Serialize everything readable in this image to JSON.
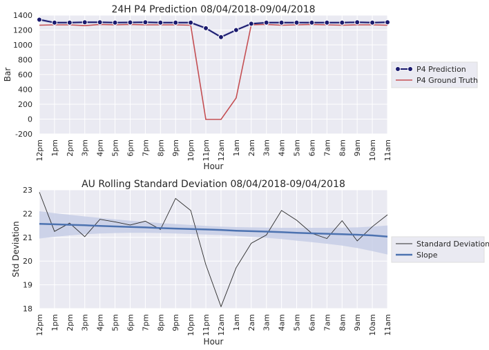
{
  "colors": {
    "plot_bg": "#eaeaf2",
    "grid": "#ffffff",
    "prediction": "#1a1a6e",
    "prediction_band": "#b9bfe0",
    "ground_truth": "#c44e52",
    "std_line": "#2b2b2b",
    "slope": "#4c72b0",
    "slope_band": "#c7cee6"
  },
  "chart_data": [
    {
      "type": "line",
      "title": "24H P4 Prediction 08/04/2018-09/04/2018",
      "xlabel": "Hour",
      "ylabel": "Bar",
      "categories": [
        "12pm",
        "1pm",
        "2pm",
        "3pm",
        "4pm",
        "5pm",
        "6pm",
        "7pm",
        "8pm",
        "9pm",
        "10pm",
        "11pm",
        "12am",
        "1am",
        "2am",
        "3am",
        "4am",
        "5am",
        "6am",
        "7am",
        "8am",
        "9am",
        "10am",
        "11am"
      ],
      "ylim": [
        -200,
        1400
      ],
      "yticks": [
        -200,
        0,
        200,
        400,
        600,
        800,
        1000,
        1200,
        1400
      ],
      "grid": true,
      "legend_position": "right",
      "series": [
        {
          "name": "P4 Prediction",
          "marker": "circle",
          "values": [
            1340,
            1300,
            1300,
            1305,
            1305,
            1300,
            1302,
            1305,
            1300,
            1300,
            1300,
            1225,
            1105,
            1200,
            1285,
            1300,
            1300,
            1300,
            1300,
            1300,
            1300,
            1305,
            1300,
            1305
          ]
        },
        {
          "name": "P4 Ground Truth",
          "marker": "none",
          "values": [
            1265,
            1270,
            1270,
            1260,
            1275,
            1270,
            1275,
            1270,
            1270,
            1270,
            1265,
            -5,
            -5,
            285,
            1270,
            1275,
            1265,
            1270,
            1275,
            1270,
            1265,
            1270,
            1270,
            1265
          ]
        }
      ]
    },
    {
      "type": "line",
      "title": "AU Rolling Standard Deviation 08/04/2018-09/04/2018",
      "xlabel": "Hour",
      "ylabel": "Std Deviation",
      "categories": [
        "12pm",
        "1pm",
        "2pm",
        "3pm",
        "4pm",
        "5pm",
        "6pm",
        "7pm",
        "8pm",
        "9pm",
        "10pm",
        "11pm",
        "12am",
        "1am",
        "2am",
        "3am",
        "4am",
        "5am",
        "6am",
        "7am",
        "8am",
        "9am",
        "10am",
        "11am"
      ],
      "ylim": [
        18,
        23
      ],
      "yticks": [
        18,
        19,
        20,
        21,
        22,
        23
      ],
      "grid": true,
      "legend_position": "right",
      "series": [
        {
          "name": "Standard Deviation",
          "values": [
            22.9,
            21.25,
            21.6,
            21.03,
            21.76,
            21.65,
            21.52,
            21.68,
            21.33,
            22.64,
            22.13,
            19.85,
            18.08,
            19.72,
            20.75,
            21.1,
            22.13,
            21.72,
            21.17,
            20.95,
            21.7,
            20.85,
            21.45,
            21.95
          ]
        },
        {
          "name": "Slope",
          "values": [
            21.57,
            21.55,
            21.53,
            21.51,
            21.48,
            21.46,
            21.44,
            21.42,
            21.39,
            21.37,
            21.35,
            21.33,
            21.31,
            21.28,
            21.26,
            21.24,
            21.22,
            21.19,
            21.17,
            21.15,
            21.13,
            21.11,
            21.08,
            21.03
          ],
          "band_upper": [
            22.1,
            22.02,
            21.95,
            21.88,
            21.82,
            21.76,
            21.7,
            21.65,
            21.6,
            21.56,
            21.52,
            21.48,
            21.45,
            21.43,
            21.42,
            21.41,
            21.4,
            21.4,
            21.4,
            21.4,
            21.41,
            21.42,
            21.45,
            21.5
          ],
          "band_lower": [
            20.95,
            21.02,
            21.08,
            21.13,
            21.16,
            21.18,
            21.19,
            21.19,
            21.18,
            21.16,
            21.14,
            21.12,
            21.1,
            21.06,
            21.02,
            20.98,
            20.93,
            20.86,
            20.8,
            20.73,
            20.65,
            20.55,
            20.42,
            20.28
          ]
        }
      ]
    }
  ]
}
